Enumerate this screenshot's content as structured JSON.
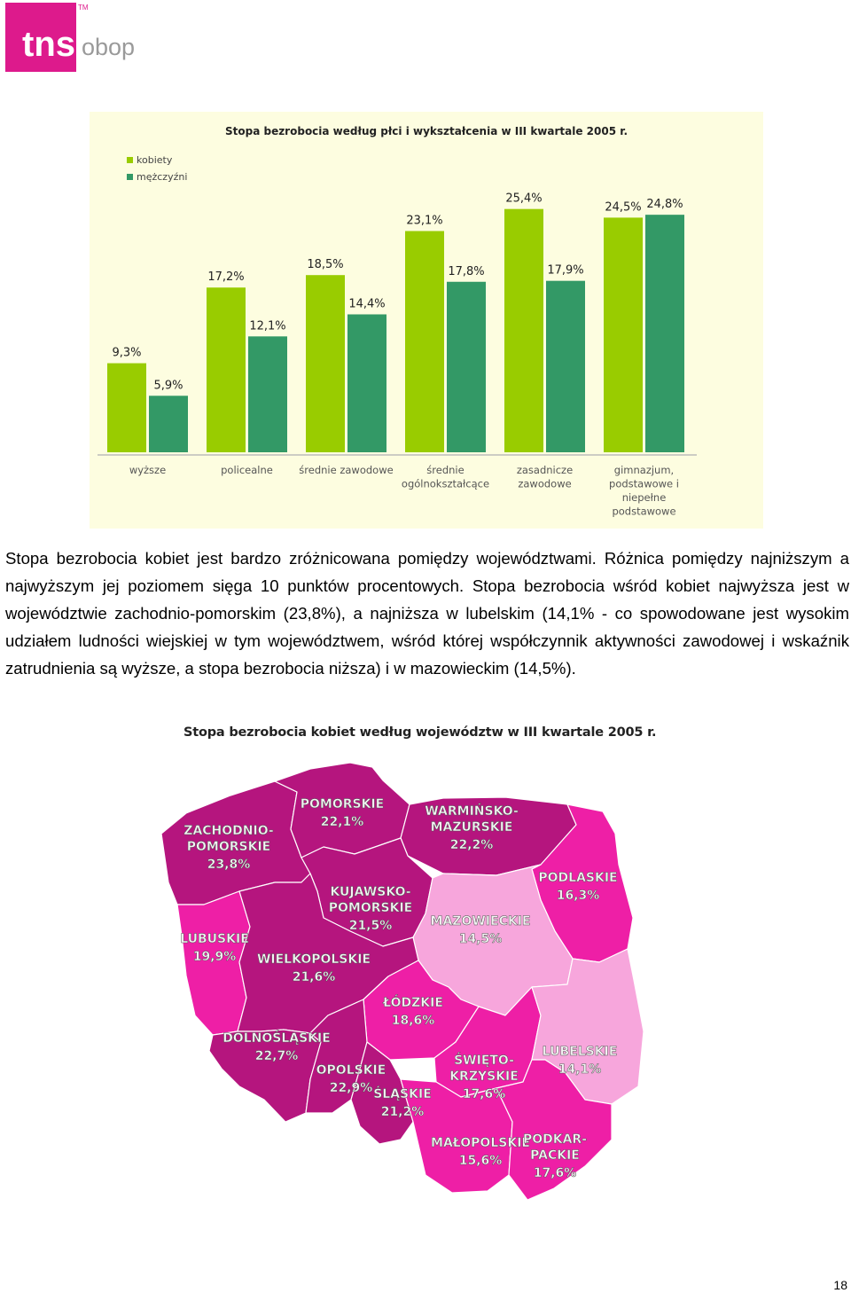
{
  "logo": {
    "main": "tns",
    "sub": "obop",
    "trademark": "TM",
    "color": "#dd1a8c"
  },
  "chart_data": {
    "type": "bar",
    "title": "Stopa bezrobocia według płci i wykształcenia w III kwartale 2005 r.",
    "legend_position": "top-left",
    "categories": [
      "wyższe",
      "policealne",
      "średnie zawodowe",
      "średnie ogólnokształcące",
      "zasadnicze zawodowe",
      "gimnazjum, podstawowe i niepełne podstawowe"
    ],
    "category_lines": [
      [
        "wyższe"
      ],
      [
        "policealne"
      ],
      [
        "średnie zawodowe"
      ],
      [
        "średnie",
        "ogólnokształcące"
      ],
      [
        "zasadnicze",
        "zawodowe"
      ],
      [
        "gimnazjum,",
        "podstawowe i",
        "niepełne",
        "podstawowe"
      ]
    ],
    "series": [
      {
        "name": "kobiety",
        "color": "#99cc00",
        "values": [
          9.3,
          17.2,
          18.5,
          23.1,
          25.4,
          24.5
        ],
        "labels": [
          "9,3%",
          "17,2%",
          "18,5%",
          "23,1%",
          "25,4%",
          "24,5%"
        ]
      },
      {
        "name": "mężczyźni",
        "color": "#339966",
        "values": [
          5.9,
          12.1,
          14.4,
          17.8,
          17.9,
          24.8
        ],
        "labels": [
          "5,9%",
          "12,1%",
          "14,4%",
          "17,8%",
          "17,9%",
          "24,8%"
        ]
      }
    ],
    "ylim": [
      0,
      30
    ],
    "background": "#fdfde0",
    "grid": false
  },
  "paragraph": "Stopa bezrobocia kobiet jest bardzo zróżnicowana pomiędzy województwami. Różnica pomiędzy najniższym a najwyższym jej poziomem sięga 10 punktów procentowych. Stopa bezrobocia wśród kobiet najwyższa jest w województwie zachodnio-pomorskim (23,8%), a najniższa w lubelskim (14,1% - co spowodowane jest wysokim udziałem ludności wiejskiej w tym województwem, wśród której współczynnik aktywności zawodowej i wskaźnik zatrudnienia są wyższe, a stopa bezrobocia niższa) i w mazowieckim (14,5%).",
  "map": {
    "title": "Stopa bezrobocia kobiet według województw w III kwartale 2005 r.",
    "colors": {
      "dark": "#b5157e",
      "mid": "#ee1fa6",
      "light": "#f7a6dc",
      "border": "#ffffff"
    },
    "regions": [
      {
        "id": "zachodniopomorskie",
        "lines": [
          "ZACHODNIO-",
          "POMORSKIE"
        ],
        "value": "23,8%",
        "shade": "dark"
      },
      {
        "id": "pomorskie",
        "lines": [
          "POMORSKIE"
        ],
        "value": "22,1%",
        "shade": "dark"
      },
      {
        "id": "warminsko-mazurskie",
        "lines": [
          "WARMIŃSKO-",
          "MAZURSKIE"
        ],
        "value": "22,2%",
        "shade": "dark"
      },
      {
        "id": "podlaskie",
        "lines": [
          "PODLASKIE"
        ],
        "value": "16,3%",
        "shade": "mid"
      },
      {
        "id": "kujawsko-pomorskie",
        "lines": [
          "KUJAWSKO-",
          "POMORSKIE"
        ],
        "value": "21,5%",
        "shade": "dark"
      },
      {
        "id": "mazowieckie",
        "lines": [
          "MAZOWIECKIE"
        ],
        "value": "14,5%",
        "shade": "light"
      },
      {
        "id": "lubuskie",
        "lines": [
          "LUBUSKIE"
        ],
        "value": "19,9%",
        "shade": "mid"
      },
      {
        "id": "wielkopolskie",
        "lines": [
          "WIELKOPOLSKIE"
        ],
        "value": "21,6%",
        "shade": "dark"
      },
      {
        "id": "lodzkie",
        "lines": [
          "ŁÓDZKIE"
        ],
        "value": "18,6%",
        "shade": "mid"
      },
      {
        "id": "dolnoslaskie",
        "lines": [
          "DOLNOŚLĄSKIE"
        ],
        "value": "22,7%",
        "shade": "dark"
      },
      {
        "id": "opolskie",
        "lines": [
          "OPOLSKIE"
        ],
        "value": "22,9%",
        "shade": "dark"
      },
      {
        "id": "slaskie",
        "lines": [
          "ŚLĄSKIE"
        ],
        "value": "21,2%",
        "shade": "dark"
      },
      {
        "id": "swietokrzyskie",
        "lines": [
          "ŚWIĘTO-",
          "KRZYSKIE"
        ],
        "value": "17,6%",
        "shade": "mid"
      },
      {
        "id": "lubelskie",
        "lines": [
          "LUBELSKIE"
        ],
        "value": "14,1%",
        "shade": "light"
      },
      {
        "id": "malopolskie",
        "lines": [
          "MAŁOPOLSKIE"
        ],
        "value": "15,6%",
        "shade": "mid"
      },
      {
        "id": "podkarpackie",
        "lines": [
          "PODKAR-",
          "PACKIE"
        ],
        "value": "17,6%",
        "shade": "mid"
      }
    ]
  },
  "page_number": "18"
}
